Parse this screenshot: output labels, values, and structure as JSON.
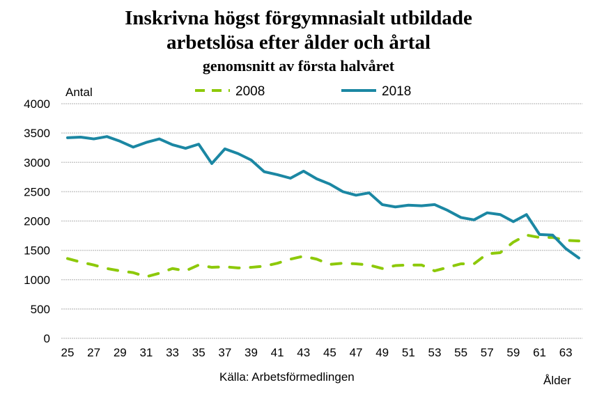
{
  "chart_data": {
    "type": "line",
    "title": "Inskrivna högst förgymnasialt utbildade",
    "title_line2": "arbetslösa efter ålder och årtal",
    "subtitle": "genomsnitt av första halvåret",
    "ylabel": "Antal",
    "xlabel": "Ålder",
    "source": "Källa: Arbetsförmedlingen",
    "ylim": [
      0,
      4000
    ],
    "yticks": [
      0,
      500,
      1000,
      1500,
      2000,
      2500,
      3000,
      3500,
      4000
    ],
    "xticks": [
      25,
      27,
      29,
      31,
      33,
      35,
      37,
      39,
      41,
      43,
      45,
      47,
      49,
      51,
      53,
      55,
      57,
      59,
      61,
      63
    ],
    "grid": true,
    "legend": "top",
    "x": [
      25,
      26,
      27,
      28,
      29,
      30,
      31,
      32,
      33,
      34,
      35,
      36,
      37,
      38,
      39,
      40,
      41,
      42,
      43,
      44,
      45,
      46,
      47,
      48,
      49,
      50,
      51,
      52,
      53,
      54,
      55,
      56,
      57,
      58,
      59,
      60,
      61,
      62,
      63,
      64
    ],
    "series": [
      {
        "name": "2008",
        "color": "#8dc90a",
        "style": "dashed",
        "values": [
          1360,
          1300,
          1250,
          1190,
          1150,
          1120,
          1050,
          1110,
          1190,
          1150,
          1250,
          1210,
          1220,
          1200,
          1210,
          1230,
          1280,
          1350,
          1400,
          1350,
          1260,
          1280,
          1270,
          1250,
          1190,
          1240,
          1250,
          1250,
          1150,
          1210,
          1270,
          1270,
          1440,
          1460,
          1640,
          1760,
          1720,
          1720,
          1670,
          1660
        ]
      },
      {
        "name": "2018",
        "color": "#1b87a3",
        "style": "solid",
        "values": [
          3420,
          3430,
          3400,
          3440,
          3360,
          3260,
          3340,
          3400,
          3300,
          3240,
          3310,
          2980,
          3230,
          3150,
          3040,
          2840,
          2790,
          2730,
          2850,
          2720,
          2630,
          2500,
          2440,
          2480,
          2280,
          2240,
          2270,
          2260,
          2280,
          2180,
          2060,
          2020,
          2140,
          2110,
          1990,
          2110,
          1770,
          1760,
          1530,
          1370
        ]
      }
    ]
  }
}
